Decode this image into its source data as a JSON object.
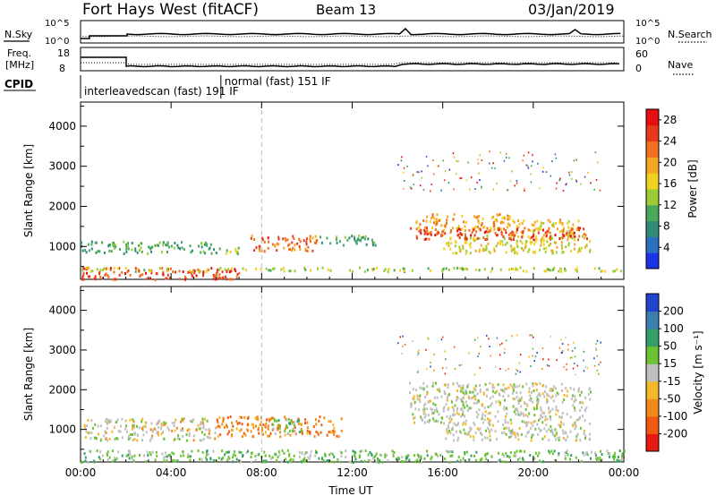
{
  "header": {
    "title": "Fort Hays West (fitACF)",
    "beam": "Beam 13",
    "date": "03/Jan/2019"
  },
  "strips": {
    "nsky_label": "N.Sky",
    "nsearch_label": "N.Search",
    "freq_label_1": "Freq.",
    "freq_label_2": "[MHz]",
    "nave_label": "Nave",
    "cpid_label": "CPID",
    "noise_ticks_left": [
      "10^5",
      "10^0"
    ],
    "noise_ticks_right": [
      "10^5",
      "10^0"
    ],
    "freq_ticks": [
      "18",
      "8"
    ],
    "nave_ticks": [
      "60",
      "0"
    ],
    "cpid_segments": [
      {
        "label": "interleavedscan (fast) 191 IF",
        "start_h": 0,
        "end_h": 6.2
      },
      {
        "label": "normal (fast) 151 IF",
        "start_h": 6.2,
        "end_h": 24
      }
    ]
  },
  "chart_data": [
    {
      "type": "heatmap",
      "title": "",
      "xlabel": "Time UT",
      "ylabel": "Slant Range [km]",
      "xlim": [
        0,
        24
      ],
      "ylim": [
        180,
        4600
      ],
      "x_ticks": [
        "00:00",
        "04:00",
        "08:00",
        "12:00",
        "16:00",
        "20:00",
        "00:00"
      ],
      "y_ticks": [
        1000,
        2000,
        3000,
        4000
      ],
      "colorbar": {
        "label": "Power [dB]",
        "ticks": [
          4,
          8,
          12,
          16,
          20,
          24,
          28
        ],
        "range": [
          0,
          30
        ],
        "colors": [
          "#1a33e6",
          "#2b6ec2",
          "#2e8b78",
          "#4aa85a",
          "#9ccc33",
          "#f0d020",
          "#f5a623",
          "#f07020",
          "#e63a1a",
          "#e61010"
        ]
      },
      "echo_regions": [
        {
          "t0": 0.0,
          "t1": 6.0,
          "r0": 850,
          "r1": 1150,
          "level": 9
        },
        {
          "t0": 6.0,
          "t1": 7.0,
          "r0": 850,
          "r1": 1050,
          "level": 14
        },
        {
          "t0": 7.5,
          "t1": 10.5,
          "r0": 900,
          "r1": 1300,
          "level": 24
        },
        {
          "t0": 10.5,
          "t1": 13.0,
          "r0": 1050,
          "r1": 1300,
          "level": 10
        },
        {
          "t0": 0.0,
          "t1": 7.0,
          "r0": 200,
          "r1": 500,
          "level": 26
        },
        {
          "t0": 0.0,
          "t1": 24.0,
          "r0": 400,
          "r1": 500,
          "level": 14
        },
        {
          "t0": 14.8,
          "t1": 19.0,
          "r0": 1400,
          "r1": 1850,
          "level": 20
        },
        {
          "t0": 19.0,
          "t1": 22.0,
          "r0": 1300,
          "r1": 1700,
          "level": 18
        },
        {
          "t0": 16.0,
          "t1": 22.5,
          "r0": 850,
          "r1": 1300,
          "level": 16
        },
        {
          "t0": 14.5,
          "t1": 22.5,
          "r0": 1200,
          "r1": 1500,
          "level": 26
        }
      ]
    },
    {
      "type": "heatmap",
      "title": "",
      "xlabel": "Time UT",
      "ylabel": "Slant Range [km]",
      "xlim": [
        0,
        24
      ],
      "ylim": [
        180,
        4600
      ],
      "x_ticks": [
        "00:00",
        "04:00",
        "08:00",
        "12:00",
        "16:00",
        "20:00",
        "00:00"
      ],
      "y_ticks": [
        1000,
        2000,
        3000,
        4000
      ],
      "colorbar": {
        "label": "Velocity [m s⁻¹]",
        "ticks": [
          200,
          100,
          50,
          15,
          -15,
          -50,
          -100,
          -200
        ],
        "colors": [
          "#2244cc",
          "#3a7fb0",
          "#33a06a",
          "#6bc233",
          "#c0c0c0",
          "#f5b82a",
          "#f08a1a",
          "#f05a10",
          "#e61a10"
        ]
      },
      "echo_regions": [
        {
          "t0": 0.0,
          "t1": 6.0,
          "r0": 750,
          "r1": 1300,
          "level": "grey-orange"
        },
        {
          "t0": 6.0,
          "t1": 11.5,
          "r0": 850,
          "r1": 1350,
          "level": "orange"
        },
        {
          "t0": 8.4,
          "t1": 9.8,
          "r0": 900,
          "r1": 1300,
          "level": "green"
        },
        {
          "t0": 0.0,
          "t1": 24.0,
          "r0": 200,
          "r1": 500,
          "level": "green"
        },
        {
          "t0": 14.5,
          "t1": 22.5,
          "r0": 1200,
          "r1": 2200,
          "level": "grey"
        },
        {
          "t0": 16.0,
          "t1": 22.5,
          "r0": 750,
          "r1": 1200,
          "level": "grey"
        }
      ]
    }
  ]
}
